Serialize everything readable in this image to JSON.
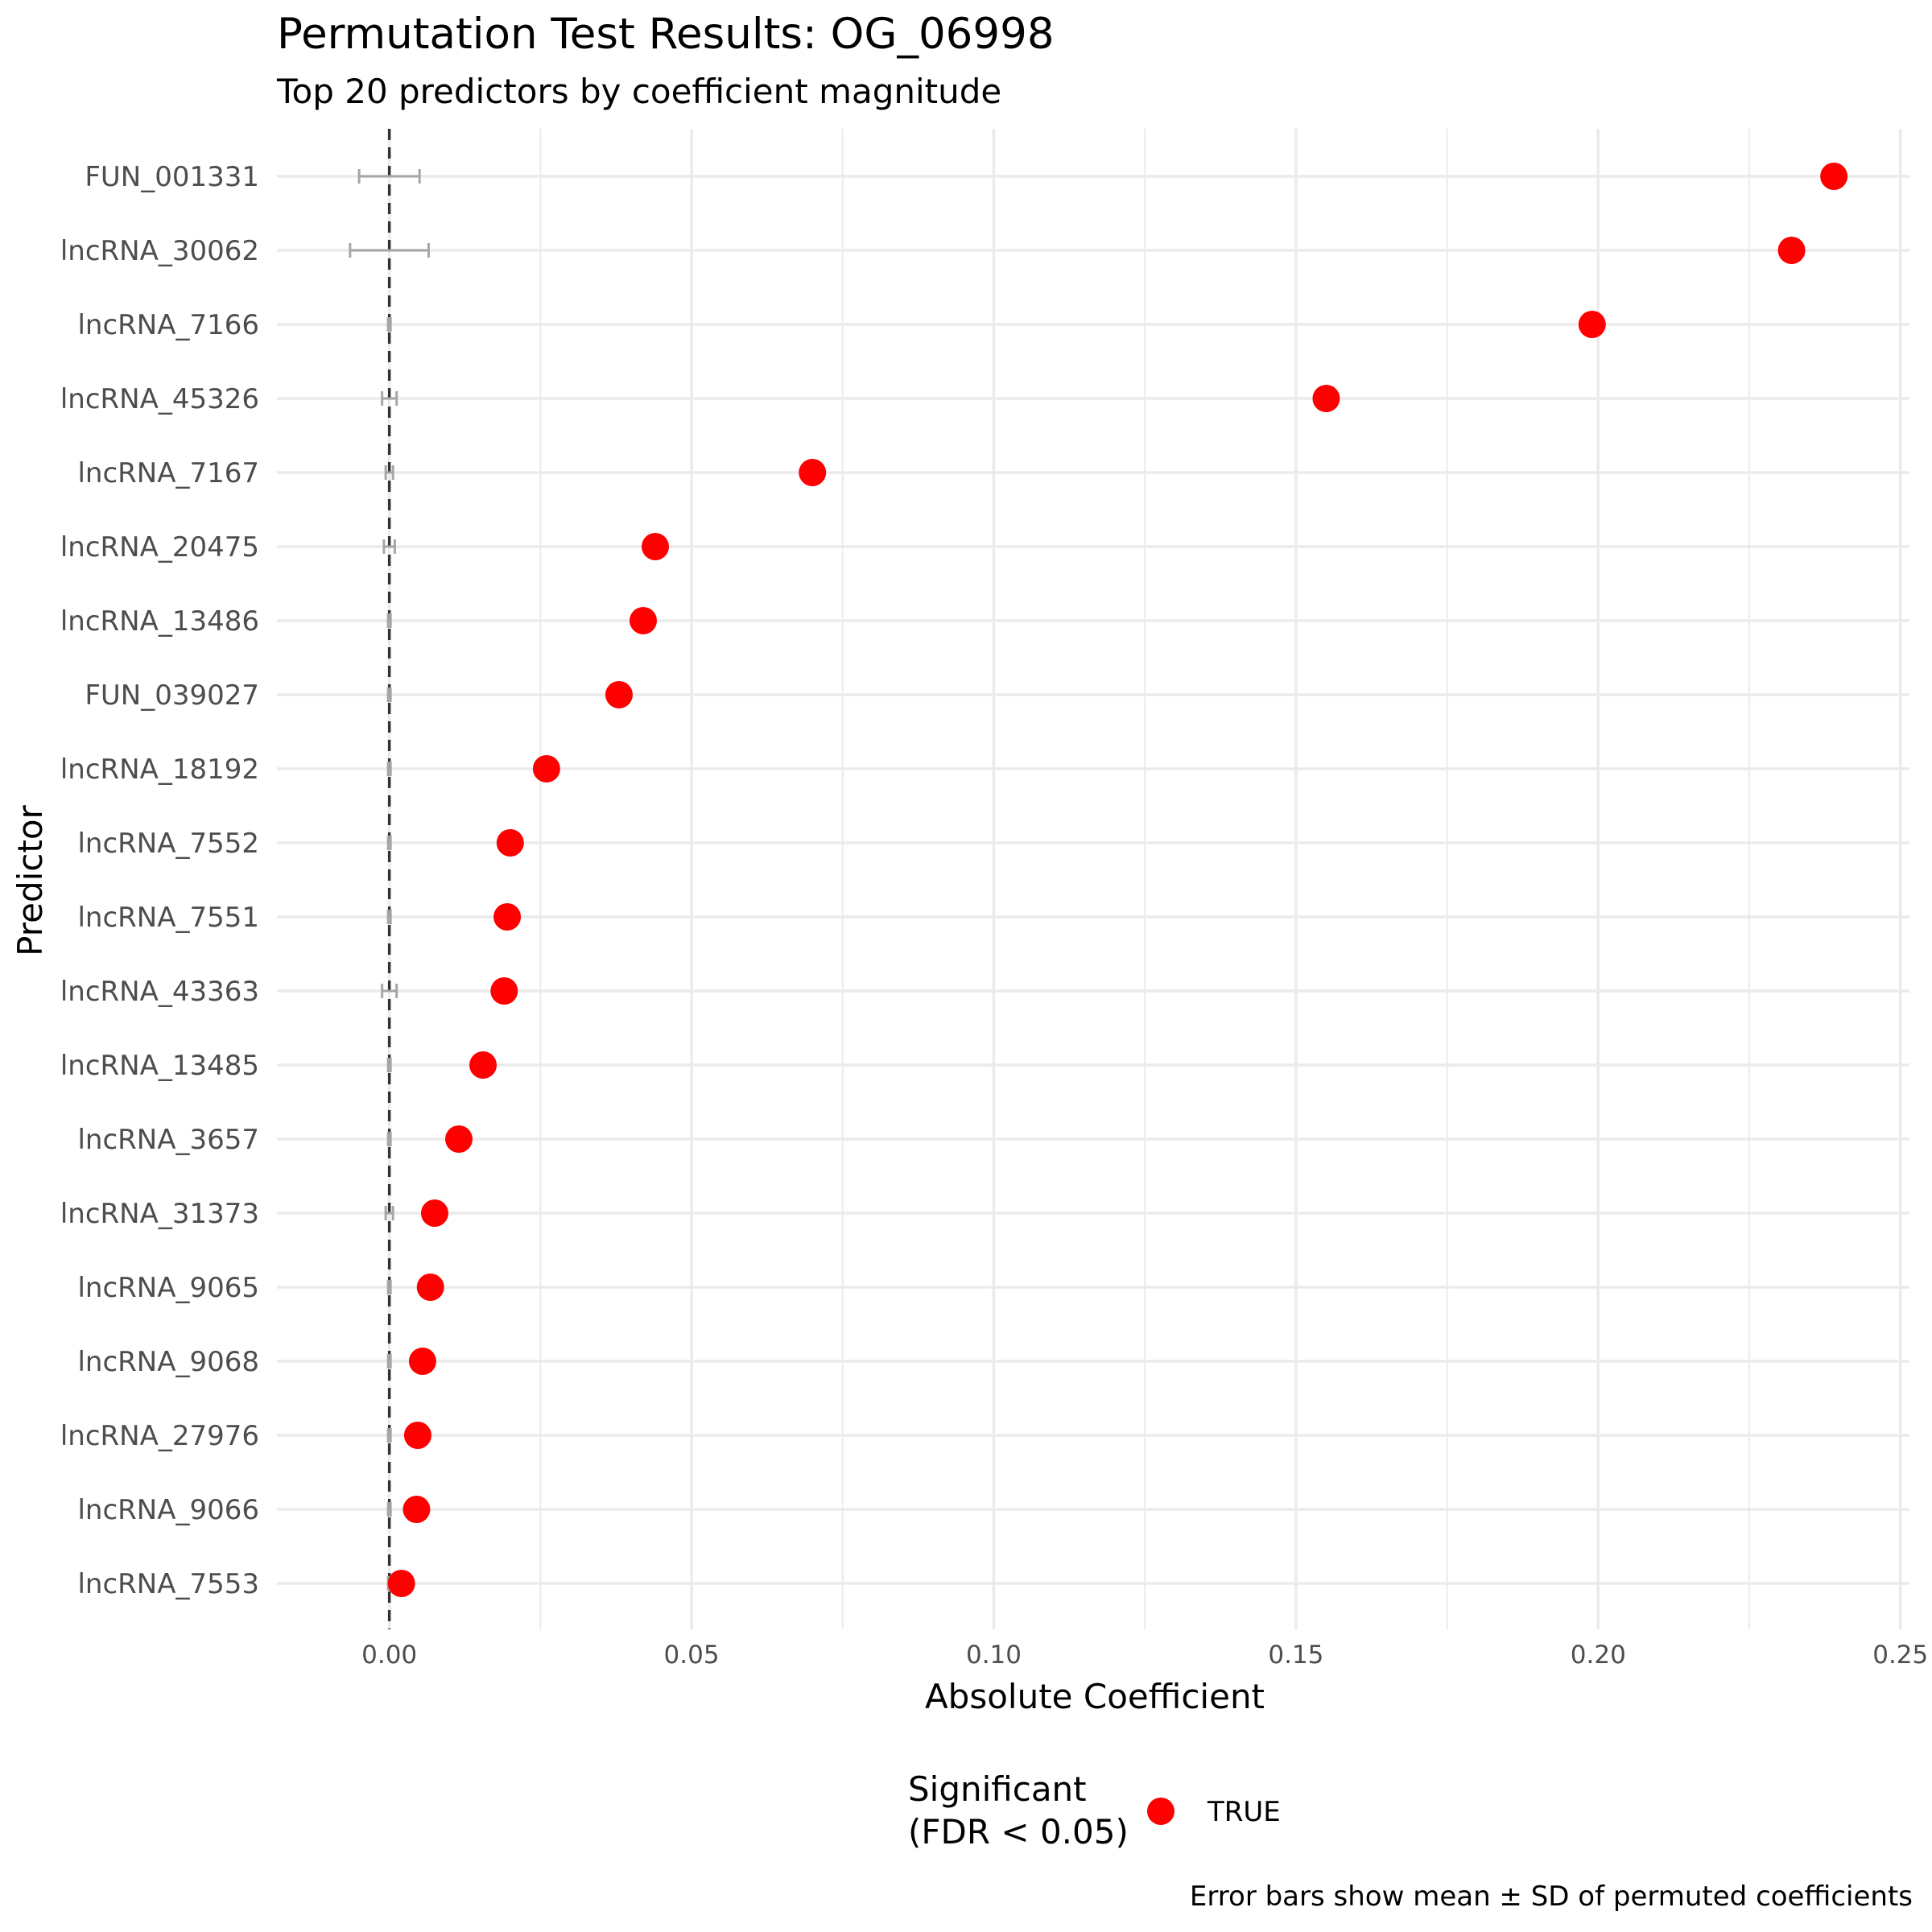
{
  "chart_data": {
    "type": "scatter",
    "title": "Permutation Test Results: OG_06998",
    "subtitle": "Top 20 predictors by coefficient magnitude",
    "xlabel": "Absolute Coefficient",
    "ylabel": "Predictor",
    "xlim": [
      -0.0186,
      0.2515
    ],
    "x_ticks": [
      0.0,
      0.05,
      0.1,
      0.15,
      0.2,
      0.25
    ],
    "x_tick_labels": [
      "0.00",
      "0.05",
      "0.10",
      "0.15",
      "0.20",
      "0.25"
    ],
    "reference_line_x": 0.0,
    "grid": true,
    "legend": {
      "title_lines": [
        "Significant",
        "(FDR < 0.05)"
      ],
      "entries": [
        {
          "label": "TRUE",
          "color": "#ff0000"
        }
      ],
      "position": "bottom"
    },
    "caption": "Error bars show mean ± SD of permuted coefficients",
    "colors": {
      "significant_point": "#ff0000",
      "error_bar": "#a6a6a6",
      "reference_line": "#333333",
      "grid": "#ebebeb"
    },
    "categories": [
      "FUN_001331",
      "lncRNA_30062",
      "lncRNA_7166",
      "lncRNA_45326",
      "lncRNA_7167",
      "lncRNA_20475",
      "lncRNA_13486",
      "FUN_039027",
      "lncRNA_18192",
      "lncRNA_7552",
      "lncRNA_7551",
      "lncRNA_43363",
      "lncRNA_13485",
      "lncRNA_3657",
      "lncRNA_31373",
      "lncRNA_9065",
      "lncRNA_9068",
      "lncRNA_27976",
      "lncRNA_9066",
      "lncRNA_7553"
    ],
    "values": [
      0.239,
      0.232,
      0.199,
      0.155,
      0.07,
      0.044,
      0.042,
      0.038,
      0.026,
      0.02,
      0.0195,
      0.019,
      0.0155,
      0.0115,
      0.0075,
      0.0068,
      0.0055,
      0.0047,
      0.0045,
      0.002
    ],
    "significant": [
      true,
      true,
      true,
      true,
      true,
      true,
      true,
      true,
      true,
      true,
      true,
      true,
      true,
      true,
      true,
      true,
      true,
      true,
      true,
      true
    ],
    "permuted_mean": [
      0.0,
      0.0,
      0.0,
      0.0,
      0.0,
      0.0,
      0.0,
      0.0,
      0.0,
      0.0,
      0.0,
      0.0,
      0.0,
      0.0,
      0.0,
      0.0,
      0.0,
      0.0,
      0.0,
      0.0
    ],
    "permuted_sd": [
      0.005,
      0.0065,
      0.0002,
      0.0012,
      0.0006,
      0.0009,
      0.0002,
      0.0002,
      0.0002,
      0.0002,
      0.0002,
      0.0012,
      0.0002,
      0.0002,
      0.0006,
      0.0002,
      0.0002,
      0.0002,
      0.0002,
      0.0002
    ]
  }
}
